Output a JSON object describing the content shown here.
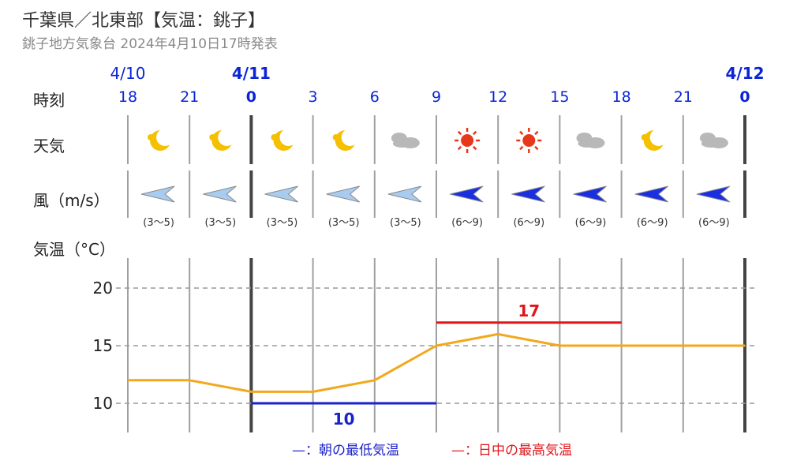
{
  "header": {
    "title": "千葉県／北東部【気温：銚子】",
    "subtitle": "銚子地方気象台 2024年4月10日17時発表"
  },
  "row_labels": {
    "time": "時刻",
    "weather": "天気",
    "wind": "風（m/s）",
    "temperature": "気温（°C）"
  },
  "dates": [
    {
      "label": "4/10",
      "bold": false,
      "at_hour_index": 0
    },
    {
      "label": "4/11",
      "bold": true,
      "at_hour_index": 2
    },
    {
      "label": "4/12",
      "bold": true,
      "at_hour_index": 10
    }
  ],
  "hours": [
    "18",
    "21",
    "0",
    "3",
    "6",
    "9",
    "12",
    "15",
    "18",
    "21",
    "0"
  ],
  "weather_icons": [
    "moon-icon",
    "moon-icon",
    "moon-icon",
    "moon-icon",
    "cloud-icon",
    "sun-icon",
    "sun-icon",
    "cloud-icon",
    "moon-icon",
    "cloud-icon"
  ],
  "wind": [
    {
      "speed": "(3〜5)",
      "level": "weak"
    },
    {
      "speed": "(3〜5)",
      "level": "weak"
    },
    {
      "speed": "(3〜5)",
      "level": "weak"
    },
    {
      "speed": "(3〜5)",
      "level": "weak"
    },
    {
      "speed": "(3〜5)",
      "level": "weak"
    },
    {
      "speed": "(6〜9)",
      "level": "strong"
    },
    {
      "speed": "(6〜9)",
      "level": "strong"
    },
    {
      "speed": "(6〜9)",
      "level": "strong"
    },
    {
      "speed": "(6〜9)",
      "level": "strong"
    },
    {
      "speed": "(6〜9)",
      "level": "strong"
    }
  ],
  "colors": {
    "date": "#0a24d6",
    "temp_line": "#f2a81d",
    "min_bar": "#1a22c9",
    "max_bar": "#e0151b",
    "wind_weak": "#a8ccf0",
    "wind_strong": "#1a2fe0",
    "moon": "#f5c000",
    "sun": "#e8381b",
    "cloud": "#b8b8b8",
    "grid": "#a0a0a0"
  },
  "chart_data": {
    "type": "line",
    "x": [
      "18",
      "21",
      "0",
      "3",
      "6",
      "9",
      "12",
      "15",
      "18",
      "21",
      "0"
    ],
    "series": [
      {
        "values": [
          12,
          12,
          11,
          11,
          12,
          15,
          16,
          15,
          15,
          15,
          15
        ]
      }
    ],
    "min_temp": {
      "value": 10,
      "label": "10",
      "from_index": 2,
      "to_index": 5
    },
    "max_temp": {
      "value": 17,
      "label": "17",
      "from_index": 5,
      "to_index": 8
    },
    "yticks": [
      "10",
      "15",
      "20"
    ],
    "ylim": [
      8.5,
      22
    ],
    "legend": {
      "min_label": "—：朝の最低気温",
      "max_label": "—：日中の最高気温"
    }
  }
}
